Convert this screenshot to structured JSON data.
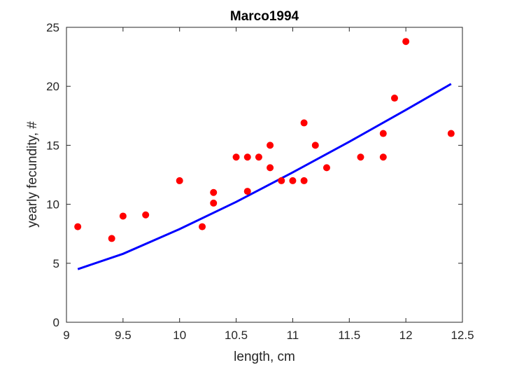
{
  "chart_data": {
    "type": "scatter",
    "title": "Marco1994",
    "xlabel": "length, cm",
    "ylabel": "yearly fecundity, #",
    "xlim": [
      9,
      12.5
    ],
    "ylim": [
      0,
      25
    ],
    "xticks": [
      "9",
      "9.5",
      "10",
      "10.5",
      "11",
      "11.5",
      "12",
      "12.5"
    ],
    "yticks": [
      "0",
      "5",
      "10",
      "15",
      "20",
      "25"
    ],
    "grid": false,
    "colors": {
      "points": "#ff0000",
      "fit": "#0000ff",
      "axes": "#262626"
    },
    "series": [
      {
        "kind": "points",
        "x": [
          9.1,
          9.4,
          9.5,
          9.7,
          10.0,
          10.2,
          10.3,
          10.3,
          10.5,
          10.6,
          10.6,
          10.7,
          10.8,
          10.8,
          10.9,
          11.0,
          11.1,
          11.1,
          11.2,
          11.3,
          11.6,
          11.8,
          11.8,
          11.9,
          12.0,
          12.4
        ],
        "y": [
          8.1,
          7.1,
          9.0,
          9.1,
          12.0,
          8.1,
          11.0,
          10.1,
          14.0,
          14.0,
          11.1,
          14.0,
          15.0,
          13.1,
          12.0,
          12.0,
          16.9,
          12.0,
          15.0,
          13.1,
          14.0,
          16.0,
          14.0,
          19.0,
          23.8,
          16.0
        ]
      },
      {
        "kind": "fit-curve",
        "x": [
          9.1,
          9.5,
          10.0,
          10.5,
          11.0,
          11.5,
          12.0,
          12.4
        ],
        "y": [
          4.5,
          5.8,
          7.9,
          10.2,
          12.7,
          15.3,
          18.0,
          20.2
        ]
      }
    ]
  }
}
